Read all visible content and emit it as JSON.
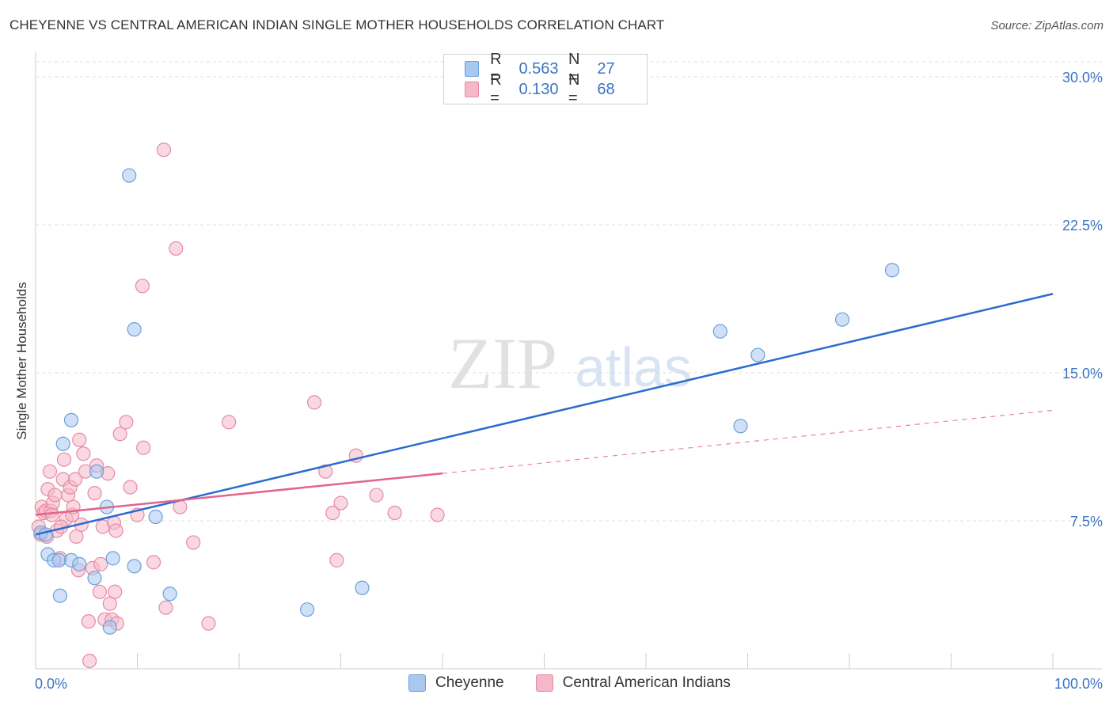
{
  "title": "CHEYENNE VS CENTRAL AMERICAN INDIAN SINGLE MOTHER HOUSEHOLDS CORRELATION CHART",
  "source": "Source: ZipAtlas.com",
  "watermark": {
    "zip": "ZIP",
    "atlas": "atlas"
  },
  "legend": {
    "r_label": "R =",
    "n_label": "N =",
    "rows": [
      {
        "r": "0.563",
        "n": "27",
        "color": "#a9c8f0"
      },
      {
        "r": "0.130",
        "n": "68",
        "color": "#f5b8c8"
      }
    ]
  },
  "bottom_legend": [
    "Cheyenne",
    "Central American Indians"
  ],
  "colors": {
    "blue_fill": "#a9c8f0",
    "blue_stroke": "#6a9fdc",
    "blue_line": "#2a6ccc",
    "pink_fill": "#f5b8c8",
    "pink_stroke": "#e68aa6",
    "pink_line": "#e3648c",
    "tick_text": "#3a74c6",
    "grid": "#dcdcdc"
  },
  "chart_data": {
    "type": "scatter",
    "title": "CHEYENNE VS CENTRAL AMERICAN INDIAN SINGLE MOTHER HOUSEHOLDS CORRELATION CHART",
    "xlabel": "",
    "ylabel": "Single Mother Households",
    "xlim": [
      0,
      100
    ],
    "ylim": [
      0,
      30
    ],
    "x_tick_labels": [
      "0.0%",
      "100.0%"
    ],
    "y_ticks": [
      7.5,
      15.0,
      22.5,
      30.0
    ],
    "y_tick_labels": [
      "7.5%",
      "15.0%",
      "22.5%",
      "30.0%"
    ],
    "grid": true,
    "legend_position": "top-center",
    "series": [
      {
        "name": "Cheyenne",
        "r": 0.563,
        "n": 27,
        "points": [
          [
            0.5,
            6.9
          ],
          [
            1.0,
            6.8
          ],
          [
            1.2,
            5.8
          ],
          [
            1.8,
            5.5
          ],
          [
            2.3,
            5.5
          ],
          [
            2.4,
            3.7
          ],
          [
            2.7,
            11.4
          ],
          [
            3.5,
            12.6
          ],
          [
            3.5,
            5.5
          ],
          [
            4.3,
            5.3
          ],
          [
            5.8,
            4.6
          ],
          [
            6.0,
            10.0
          ],
          [
            7.0,
            8.2
          ],
          [
            7.3,
            2.1
          ],
          [
            7.6,
            5.6
          ],
          [
            9.2,
            25.0
          ],
          [
            9.7,
            17.2
          ],
          [
            9.7,
            5.2
          ],
          [
            11.8,
            7.7
          ],
          [
            13.2,
            3.8
          ],
          [
            26.7,
            3.0
          ],
          [
            32.1,
            4.1
          ],
          [
            67.3,
            17.1
          ],
          [
            69.3,
            12.3
          ],
          [
            71.0,
            15.9
          ],
          [
            79.3,
            17.7
          ],
          [
            84.2,
            20.2
          ]
        ],
        "trend": {
          "x0": 0,
          "y0": 6.8,
          "x1": 100,
          "y1": 19.0,
          "style": "solid"
        }
      },
      {
        "name": "Central American Indians",
        "r": 0.13,
        "n": 68,
        "points": [
          [
            0.3,
            7.2
          ],
          [
            0.5,
            6.8
          ],
          [
            0.6,
            8.2
          ],
          [
            0.8,
            7.9
          ],
          [
            1.0,
            8.0
          ],
          [
            1.1,
            6.7
          ],
          [
            1.2,
            9.1
          ],
          [
            1.4,
            10.0
          ],
          [
            1.5,
            8.0
          ],
          [
            1.7,
            8.4
          ],
          [
            1.9,
            8.8
          ],
          [
            2.1,
            7.0
          ],
          [
            2.4,
            5.6
          ],
          [
            2.7,
            9.6
          ],
          [
            2.8,
            10.6
          ],
          [
            3.0,
            7.6
          ],
          [
            3.2,
            8.8
          ],
          [
            3.4,
            9.2
          ],
          [
            3.6,
            7.8
          ],
          [
            3.7,
            8.2
          ],
          [
            3.9,
            9.6
          ],
          [
            4.0,
            6.7
          ],
          [
            4.2,
            5.0
          ],
          [
            4.3,
            11.6
          ],
          [
            4.5,
            7.3
          ],
          [
            4.7,
            10.9
          ],
          [
            4.9,
            10.0
          ],
          [
            5.2,
            2.4
          ],
          [
            5.3,
            0.4
          ],
          [
            5.6,
            5.1
          ],
          [
            5.8,
            8.9
          ],
          [
            6.0,
            10.3
          ],
          [
            6.3,
            3.9
          ],
          [
            6.4,
            5.3
          ],
          [
            6.6,
            7.2
          ],
          [
            6.8,
            2.5
          ],
          [
            7.1,
            9.9
          ],
          [
            7.3,
            3.3
          ],
          [
            7.5,
            2.5
          ],
          [
            7.7,
            7.4
          ],
          [
            7.8,
            3.9
          ],
          [
            7.9,
            7.0
          ],
          [
            8.0,
            2.3
          ],
          [
            8.3,
            11.9
          ],
          [
            8.9,
            12.5
          ],
          [
            9.3,
            9.2
          ],
          [
            10.0,
            7.8
          ],
          [
            10.5,
            19.4
          ],
          [
            10.6,
            11.2
          ],
          [
            11.6,
            5.4
          ],
          [
            12.6,
            26.3
          ],
          [
            12.8,
            3.1
          ],
          [
            13.8,
            21.3
          ],
          [
            14.2,
            8.2
          ],
          [
            15.5,
            6.4
          ],
          [
            17.0,
            2.3
          ],
          [
            19.0,
            12.5
          ],
          [
            27.4,
            13.5
          ],
          [
            28.5,
            10.0
          ],
          [
            29.2,
            7.9
          ],
          [
            29.6,
            5.5
          ],
          [
            30.0,
            8.4
          ],
          [
            31.5,
            10.8
          ],
          [
            33.5,
            8.8
          ],
          [
            35.3,
            7.9
          ],
          [
            39.5,
            7.8
          ],
          [
            1.6,
            7.8
          ],
          [
            2.5,
            7.2
          ]
        ],
        "trend": {
          "x0": 0,
          "y0": 7.8,
          "x1": 40,
          "y1": 9.9,
          "style": "solid",
          "extension": {
            "x1": 100,
            "y1": 13.1,
            "style": "dashed"
          }
        }
      }
    ]
  }
}
